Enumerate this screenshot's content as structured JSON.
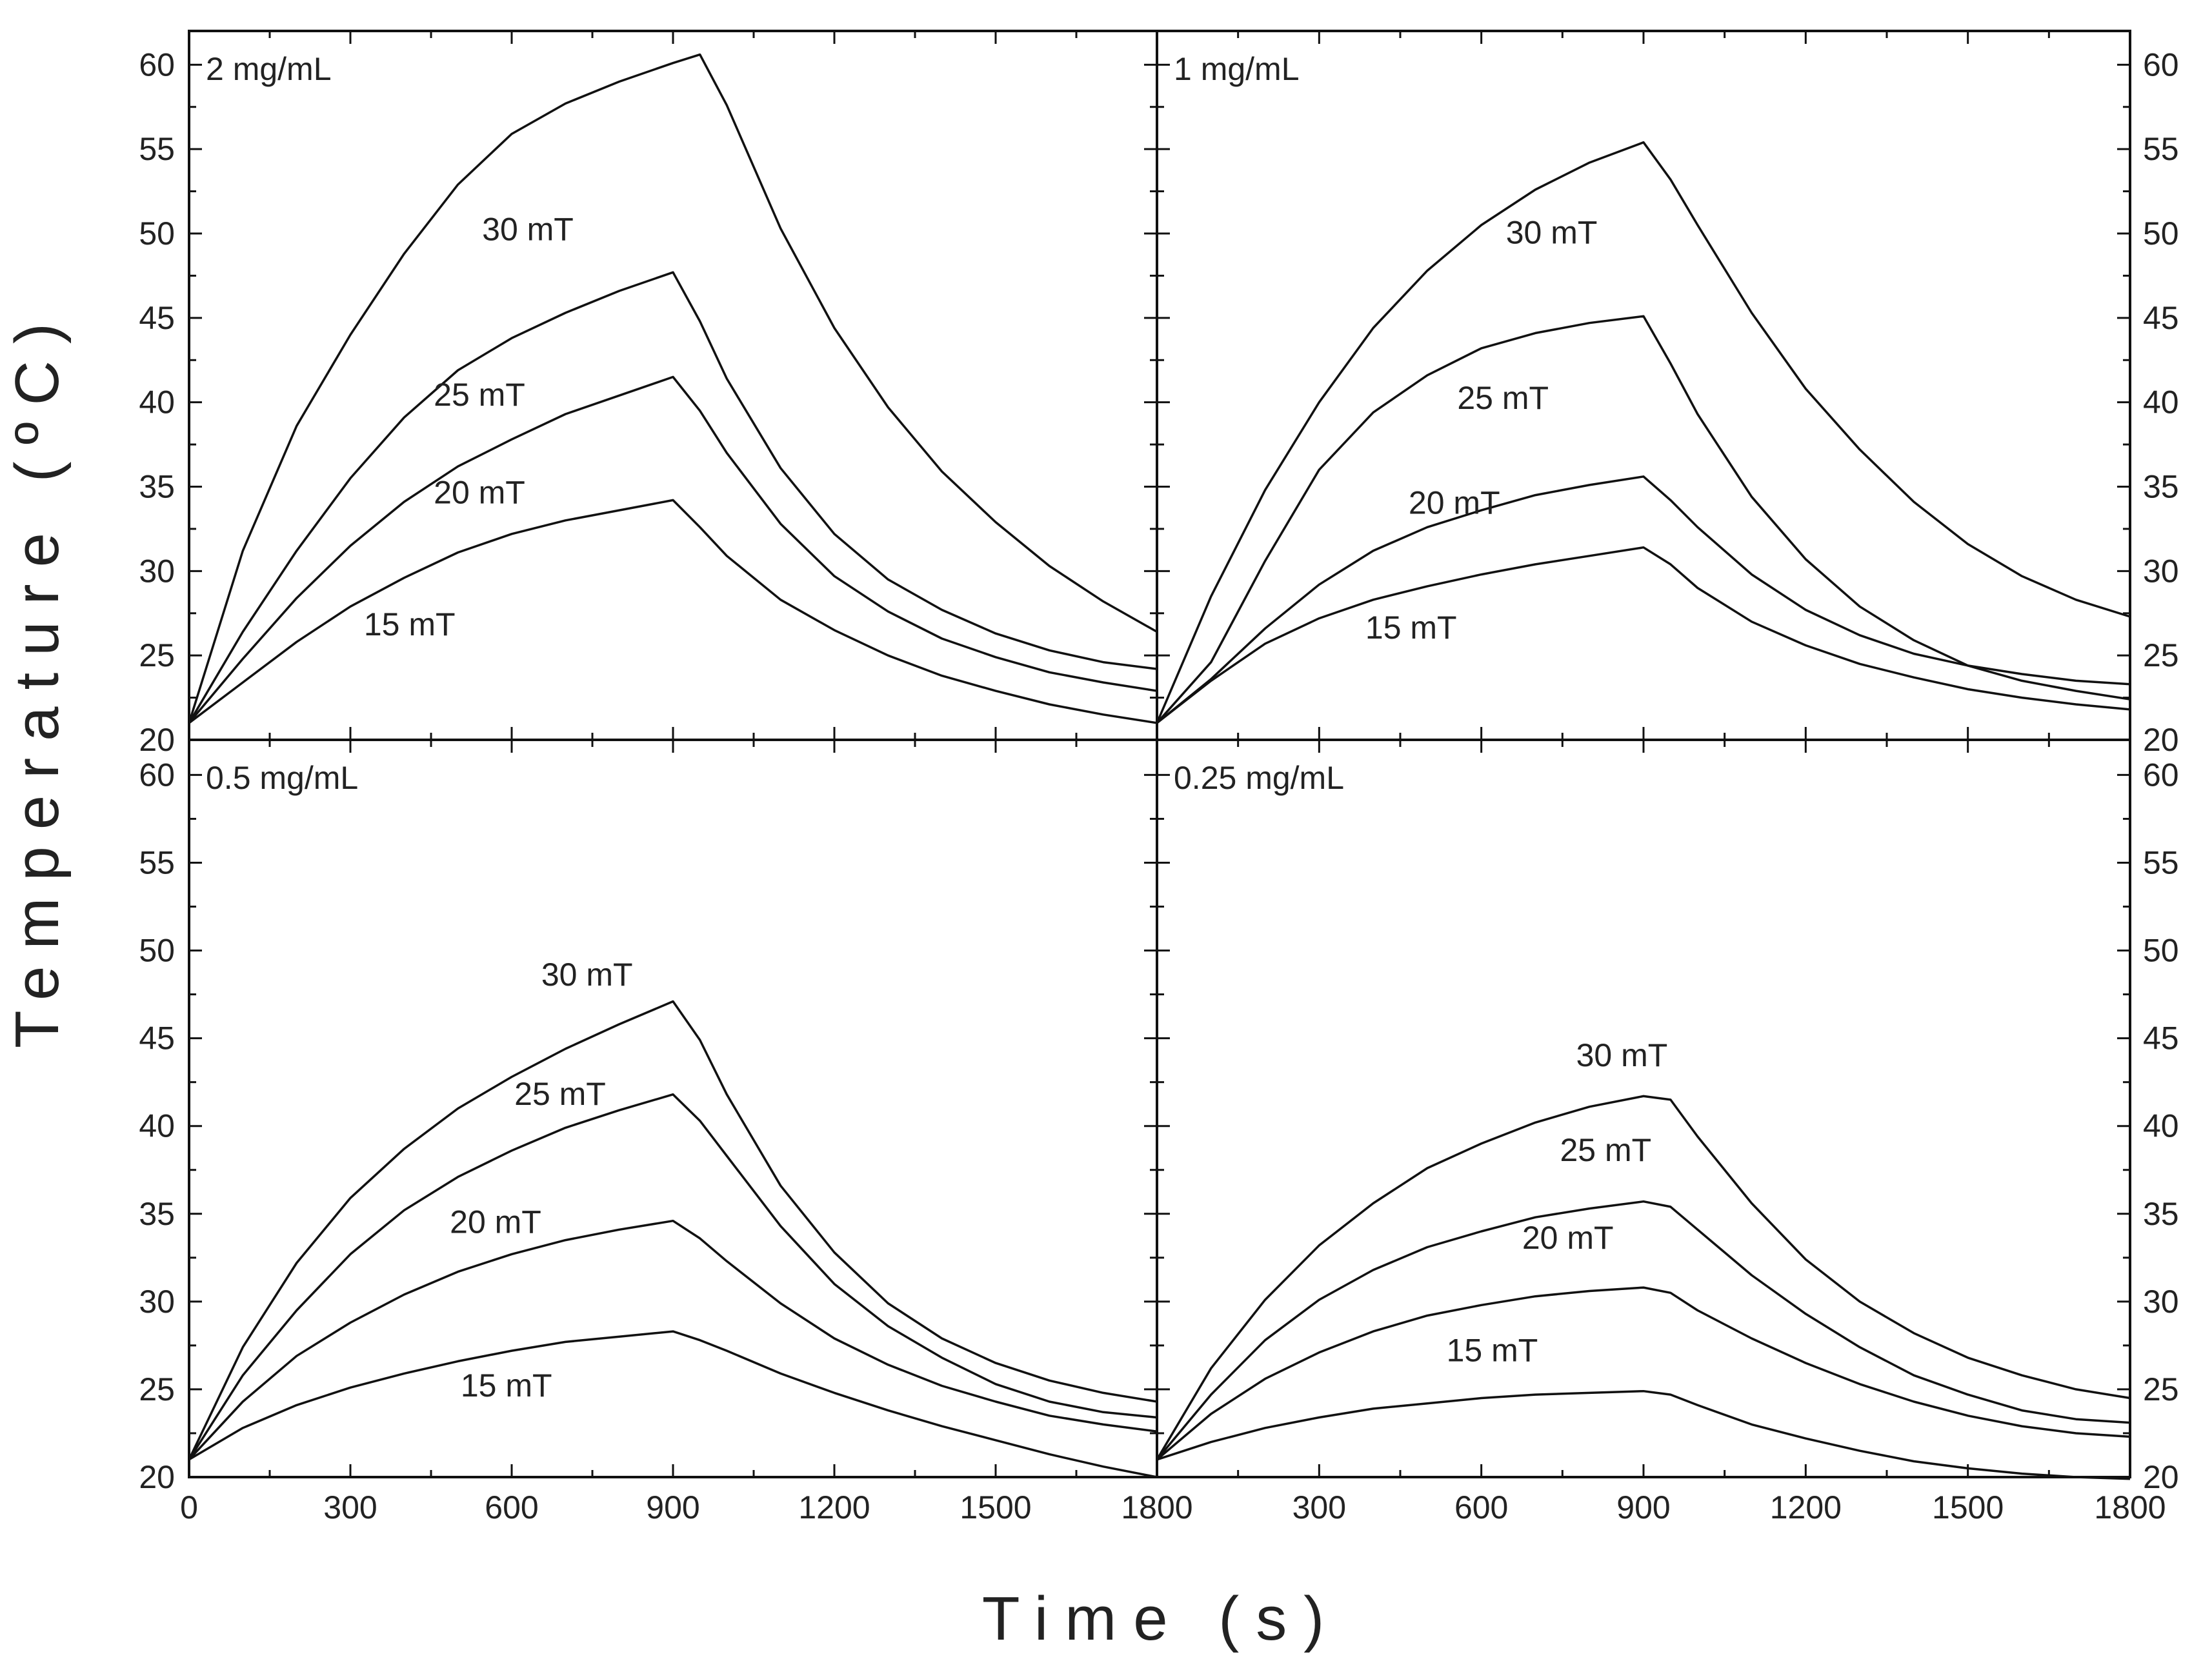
{
  "chart_data": {
    "type": "line",
    "xlabel": "Time (s)",
    "ylabel": "Temperature (ºC)",
    "xlim": [
      0,
      1800
    ],
    "ylim": [
      20,
      62
    ],
    "x_ticks": [
      0,
      300,
      600,
      900,
      1200,
      1500,
      1800
    ],
    "x_tick_labels": [
      "0",
      "300",
      "600",
      "900",
      "1200",
      "1500",
      "1800"
    ],
    "y_ticks": [
      20,
      25,
      30,
      35,
      40,
      45,
      50,
      55,
      60
    ],
    "y_tick_labels": [
      "20",
      "25",
      "30",
      "35",
      "40",
      "45",
      "50",
      "55",
      "60"
    ],
    "panels": [
      {
        "title": "2 mg/mL",
        "series": [
          {
            "name": "30 mT",
            "label_at": [
              630,
              49.6
            ],
            "x": [
              0,
              100,
              200,
              300,
              400,
              500,
              600,
              700,
              800,
              900,
              950,
              1000,
              1100,
              1200,
              1300,
              1400,
              1500,
              1600,
              1700,
              1800
            ],
            "y": [
              21.0,
              31.2,
              38.6,
              44.0,
              48.8,
              52.9,
              55.9,
              57.7,
              59.0,
              60.1,
              60.6,
              57.6,
              50.3,
              44.4,
              39.7,
              35.9,
              32.9,
              30.3,
              28.2,
              26.4
            ]
          },
          {
            "name": "25 mT",
            "label_at": [
              540,
              39.8
            ],
            "x": [
              0,
              100,
              200,
              300,
              400,
              500,
              600,
              700,
              800,
              900,
              950,
              1000,
              1100,
              1200,
              1300,
              1400,
              1500,
              1600,
              1700,
              1800
            ],
            "y": [
              21.0,
              26.4,
              31.2,
              35.5,
              39.1,
              41.9,
              43.8,
              45.3,
              46.6,
              47.7,
              44.8,
              41.4,
              36.1,
              32.2,
              29.5,
              27.7,
              26.3,
              25.3,
              24.6,
              24.2
            ]
          },
          {
            "name": "20 mT",
            "label_at": [
              540,
              34.0
            ],
            "x": [
              0,
              100,
              200,
              300,
              400,
              500,
              600,
              700,
              800,
              900,
              950,
              1000,
              1100,
              1200,
              1300,
              1400,
              1500,
              1600,
              1700,
              1800
            ],
            "y": [
              21.0,
              24.8,
              28.4,
              31.5,
              34.1,
              36.2,
              37.8,
              39.3,
              40.4,
              41.5,
              39.5,
              37.0,
              32.8,
              29.7,
              27.6,
              26.0,
              24.9,
              24.0,
              23.4,
              22.9
            ]
          },
          {
            "name": "15 mT",
            "label_at": [
              410,
              26.2
            ],
            "x": [
              0,
              100,
              200,
              300,
              400,
              500,
              600,
              700,
              800,
              900,
              950,
              1000,
              1100,
              1200,
              1300,
              1400,
              1500,
              1600,
              1700,
              1800
            ],
            "y": [
              21.0,
              23.4,
              25.8,
              27.9,
              29.6,
              31.1,
              32.2,
              33.0,
              33.6,
              34.2,
              32.6,
              30.9,
              28.3,
              26.5,
              25.0,
              23.8,
              22.9,
              22.1,
              21.5,
              21.0
            ]
          }
        ]
      },
      {
        "title": "1 mg/mL",
        "series": [
          {
            "name": "30 mT",
            "label_at": [
              730,
              49.4
            ],
            "x": [
              0,
              100,
              200,
              300,
              400,
              500,
              600,
              700,
              800,
              900,
              950,
              1000,
              1100,
              1200,
              1300,
              1400,
              1500,
              1600,
              1700,
              1800
            ],
            "y": [
              21.0,
              28.5,
              34.8,
              40.0,
              44.4,
              47.8,
              50.5,
              52.6,
              54.2,
              55.4,
              53.2,
              50.5,
              45.3,
              40.8,
              37.2,
              34.1,
              31.6,
              29.7,
              28.3,
              27.3
            ]
          },
          {
            "name": "25 mT",
            "label_at": [
              640,
              39.6
            ],
            "x": [
              0,
              100,
              200,
              300,
              400,
              500,
              600,
              700,
              800,
              900,
              950,
              1000,
              1100,
              1200,
              1300,
              1400,
              1500,
              1600,
              1700,
              1800
            ],
            "y": [
              21.0,
              24.6,
              30.6,
              36.0,
              39.4,
              41.6,
              43.2,
              44.1,
              44.7,
              45.1,
              42.3,
              39.3,
              34.4,
              30.7,
              27.9,
              25.9,
              24.4,
              23.5,
              22.9,
              22.4
            ]
          },
          {
            "name": "20 mT",
            "label_at": [
              550,
              33.4
            ],
            "x": [
              0,
              100,
              200,
              300,
              400,
              500,
              600,
              700,
              800,
              900,
              950,
              1000,
              1100,
              1200,
              1300,
              1400,
              1500,
              1600,
              1700,
              1800
            ],
            "y": [
              21.0,
              23.6,
              26.6,
              29.2,
              31.2,
              32.6,
              33.6,
              34.5,
              35.1,
              35.6,
              34.2,
              32.6,
              29.8,
              27.7,
              26.2,
              25.1,
              24.4,
              23.9,
              23.5,
              23.3
            ]
          },
          {
            "name": "15 mT",
            "label_at": [
              470,
              26.0
            ],
            "x": [
              0,
              100,
              200,
              300,
              400,
              500,
              600,
              700,
              800,
              900,
              950,
              1000,
              1100,
              1200,
              1300,
              1400,
              1500,
              1600,
              1700,
              1800
            ],
            "y": [
              21.0,
              23.5,
              25.7,
              27.2,
              28.3,
              29.1,
              29.8,
              30.4,
              30.9,
              31.4,
              30.4,
              29.0,
              27.0,
              25.6,
              24.5,
              23.7,
              23.0,
              22.5,
              22.1,
              21.8
            ]
          }
        ]
      },
      {
        "title": "0.5 mg/mL",
        "series": [
          {
            "name": "30 mT",
            "label_at": [
              740,
              48.0
            ],
            "x": [
              0,
              100,
              200,
              300,
              400,
              500,
              600,
              700,
              800,
              900,
              950,
              1000,
              1100,
              1200,
              1300,
              1400,
              1500,
              1600,
              1700,
              1800
            ],
            "y": [
              21.0,
              27.4,
              32.2,
              35.9,
              38.7,
              41.0,
              42.8,
              44.4,
              45.8,
              47.1,
              44.9,
              41.8,
              36.6,
              32.8,
              29.9,
              27.9,
              26.5,
              25.5,
              24.8,
              24.3
            ]
          },
          {
            "name": "25 mT",
            "label_at": [
              690,
              41.2
            ],
            "x": [
              0,
              100,
              200,
              300,
              400,
              500,
              600,
              700,
              800,
              900,
              950,
              1000,
              1100,
              1200,
              1300,
              1400,
              1500,
              1600,
              1700,
              1800
            ],
            "y": [
              21.0,
              25.8,
              29.5,
              32.7,
              35.2,
              37.1,
              38.6,
              39.9,
              40.9,
              41.8,
              40.3,
              38.3,
              34.3,
              31.0,
              28.6,
              26.8,
              25.3,
              24.3,
              23.7,
              23.4
            ]
          },
          {
            "name": "20 mT",
            "label_at": [
              570,
              33.9
            ],
            "x": [
              0,
              100,
              200,
              300,
              400,
              500,
              600,
              700,
              800,
              900,
              950,
              1000,
              1100,
              1200,
              1300,
              1400,
              1500,
              1600,
              1700,
              1800
            ],
            "y": [
              21.0,
              24.3,
              26.9,
              28.8,
              30.4,
              31.7,
              32.7,
              33.5,
              34.1,
              34.6,
              33.6,
              32.3,
              29.9,
              27.9,
              26.4,
              25.2,
              24.3,
              23.5,
              23.0,
              22.6
            ]
          },
          {
            "name": "15 mT",
            "label_at": [
              590,
              24.6
            ],
            "x": [
              0,
              100,
              200,
              300,
              400,
              500,
              600,
              700,
              800,
              900,
              950,
              1000,
              1100,
              1200,
              1300,
              1400,
              1500,
              1600,
              1700,
              1800
            ],
            "y": [
              21.0,
              22.8,
              24.1,
              25.1,
              25.9,
              26.6,
              27.2,
              27.7,
              28.0,
              28.3,
              27.8,
              27.2,
              25.9,
              24.8,
              23.8,
              22.9,
              22.1,
              21.3,
              20.6,
              20.0
            ]
          }
        ]
      },
      {
        "title": "0.25 mg/mL",
        "series": [
          {
            "name": "30 mT",
            "label_at": [
              860,
              43.4
            ],
            "x": [
              0,
              100,
              200,
              300,
              400,
              500,
              600,
              700,
              800,
              900,
              950,
              1000,
              1100,
              1200,
              1300,
              1400,
              1500,
              1600,
              1700,
              1800
            ],
            "y": [
              21.0,
              26.2,
              30.1,
              33.2,
              35.6,
              37.6,
              39.0,
              40.2,
              41.1,
              41.7,
              41.5,
              39.4,
              35.6,
              32.4,
              30.0,
              28.2,
              26.8,
              25.8,
              25.0,
              24.5
            ]
          },
          {
            "name": "25 mT",
            "label_at": [
              830,
              38.0
            ],
            "x": [
              0,
              100,
              200,
              300,
              400,
              500,
              600,
              700,
              800,
              900,
              950,
              1000,
              1100,
              1200,
              1300,
              1400,
              1500,
              1600,
              1700,
              1800
            ],
            "y": [
              21.0,
              24.7,
              27.8,
              30.1,
              31.8,
              33.1,
              34.0,
              34.8,
              35.3,
              35.7,
              35.4,
              34.1,
              31.5,
              29.3,
              27.4,
              25.8,
              24.7,
              23.8,
              23.3,
              23.1
            ]
          },
          {
            "name": "20 mT",
            "label_at": [
              760,
              33.0
            ],
            "x": [
              0,
              100,
              200,
              300,
              400,
              500,
              600,
              700,
              800,
              900,
              950,
              1000,
              1100,
              1200,
              1300,
              1400,
              1500,
              1600,
              1700,
              1800
            ],
            "y": [
              21.0,
              23.6,
              25.6,
              27.1,
              28.3,
              29.2,
              29.8,
              30.3,
              30.6,
              30.8,
              30.5,
              29.5,
              27.9,
              26.5,
              25.3,
              24.3,
              23.5,
              22.9,
              22.5,
              22.3
            ]
          },
          {
            "name": "15 mT",
            "label_at": [
              620,
              26.6
            ],
            "x": [
              0,
              100,
              200,
              300,
              400,
              500,
              600,
              700,
              800,
              900,
              950,
              1000,
              1100,
              1200,
              1300,
              1400,
              1500,
              1600,
              1700,
              1800
            ],
            "y": [
              21.0,
              22.0,
              22.8,
              23.4,
              23.9,
              24.2,
              24.5,
              24.7,
              24.8,
              24.9,
              24.7,
              24.1,
              23.0,
              22.2,
              21.5,
              20.9,
              20.5,
              20.2,
              20.0,
              19.9
            ]
          }
        ]
      }
    ]
  }
}
